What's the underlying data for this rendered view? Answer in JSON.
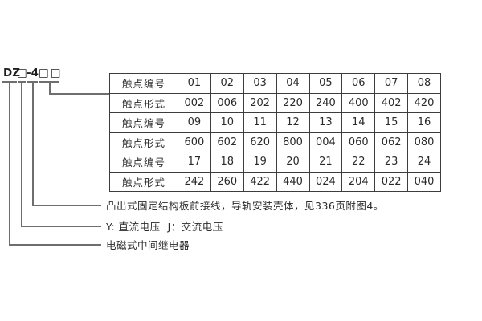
{
  "model_code": {
    "parts": [
      "DZ",
      "□",
      "-4",
      "□□"
    ],
    "full": "DZ□ -4 □□"
  },
  "table": {
    "rows": [
      {
        "label": "触点编号",
        "values": [
          "01",
          "02",
          "03",
          "04",
          "05",
          "06",
          "07",
          "08"
        ]
      },
      {
        "label": "触点形式",
        "values": [
          "002",
          "006",
          "202",
          "220",
          "240",
          "400",
          "402",
          "420"
        ]
      },
      {
        "label": "触点编号",
        "values": [
          "09",
          "10",
          "11",
          "12",
          "13",
          "14",
          "15",
          "16"
        ]
      },
      {
        "label": "触点形式",
        "values": [
          "600",
          "602",
          "620",
          "800",
          "004",
          "060",
          "062",
          "080"
        ]
      },
      {
        "label": "触点编号",
        "values": [
          "17",
          "18",
          "19",
          "20",
          "21",
          "22",
          "23",
          "24"
        ]
      },
      {
        "label": "触点形式",
        "values": [
          "242",
          "260",
          "422",
          "440",
          "024",
          "204",
          "022",
          "040"
        ]
      }
    ]
  },
  "annotations": [
    "凸出式固定结构板前接线，导轨安装壳体，见336页附图4。",
    "Y: 直流电压  J：交流电压",
    "电磁式中间继电器"
  ],
  "colors": {
    "background": "#ffffff",
    "text": "#2a2a2a",
    "table_border": "#3d3d3d",
    "leader_line": "#6e6e6e"
  }
}
